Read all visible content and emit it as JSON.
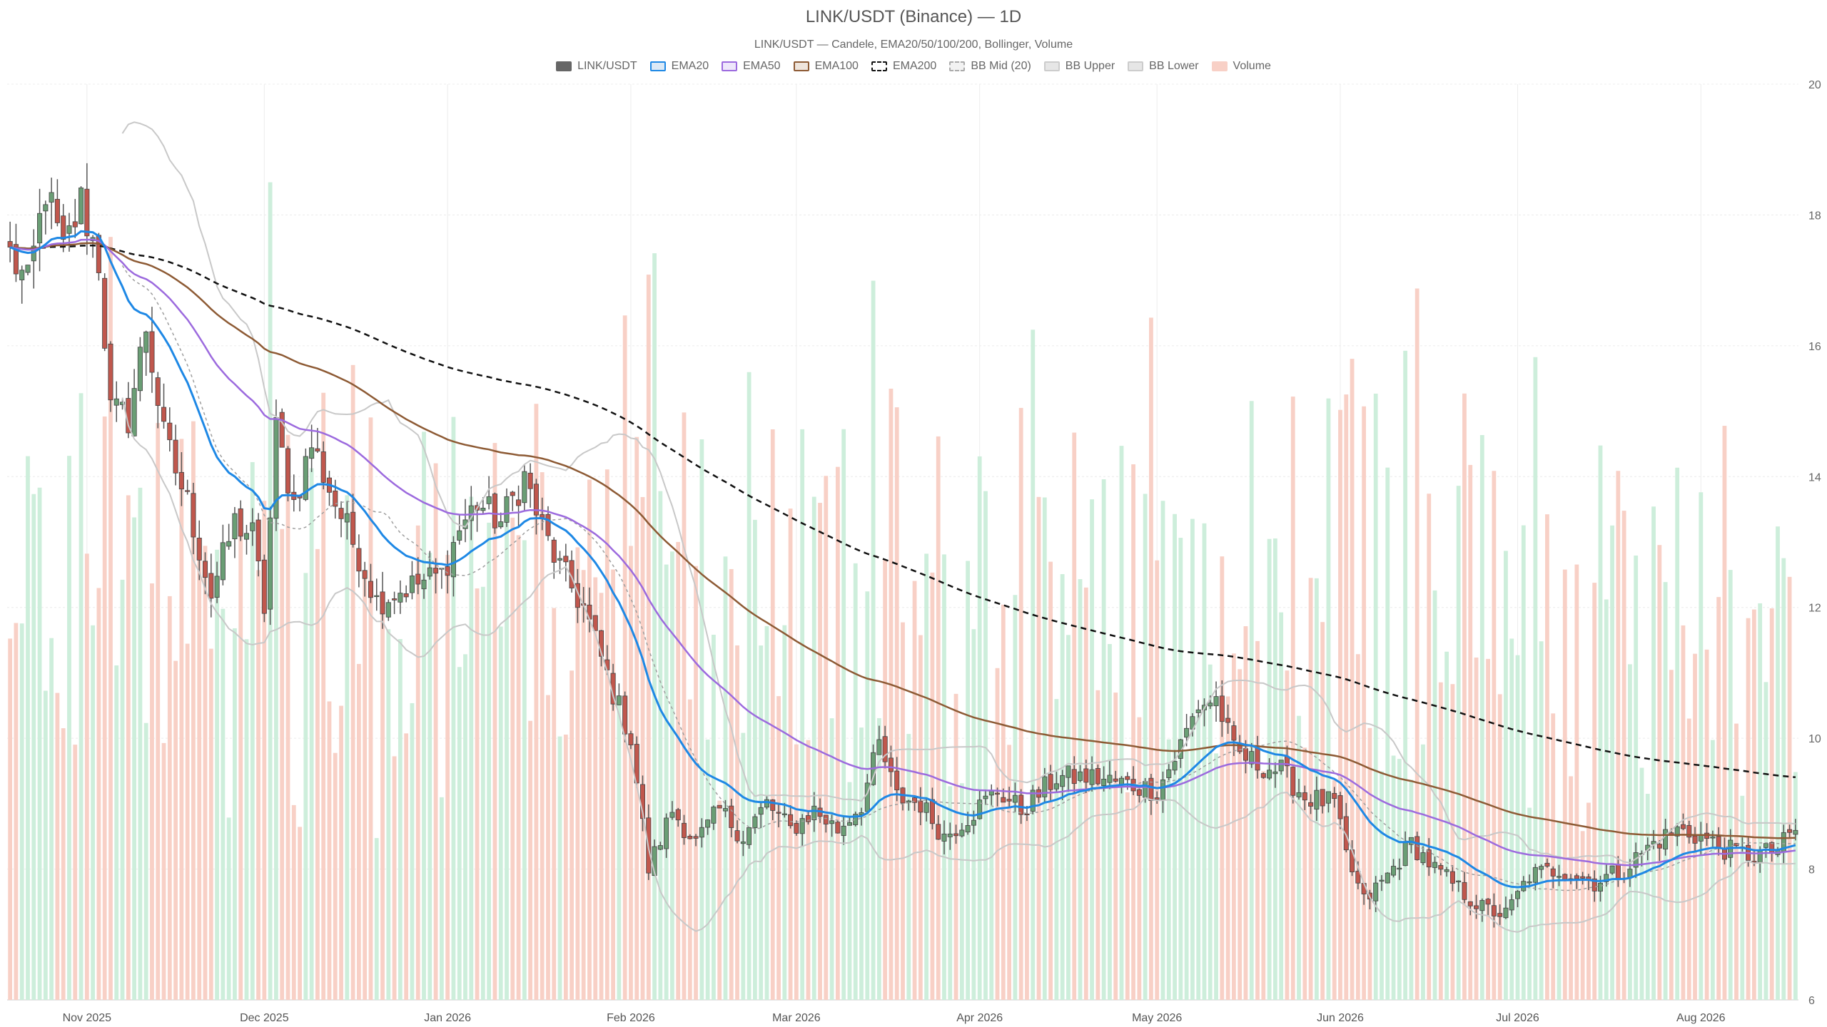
{
  "chart_data": {
    "type": "candlestick",
    "title": "LINK/USDT (Binance) — 1D",
    "subtitle": "LINK/USDT — Candele, EMA20/50/100/200, Bollinger, Volume",
    "legend": [
      {
        "name": "LINK/USDT",
        "swatch_fill": "#666666",
        "swatch_stroke": "#666666",
        "dashed": false
      },
      {
        "name": "EMA20",
        "swatch_fill": "#dbe9f6",
        "swatch_stroke": "#1e88e5",
        "dashed": false
      },
      {
        "name": "EMA50",
        "swatch_fill": "#eee7fb",
        "swatch_stroke": "#9c6ade",
        "dashed": false
      },
      {
        "name": "EMA100",
        "swatch_fill": "#efe5dc",
        "swatch_stroke": "#8d5a34",
        "dashed": false
      },
      {
        "name": "EMA200",
        "swatch_fill": "#ffffff",
        "swatch_stroke": "#111111",
        "dashed": true
      },
      {
        "name": "BB Mid (20)",
        "swatch_fill": "#f2f2f2",
        "swatch_stroke": "#aaaaaa",
        "dashed": true
      },
      {
        "name": "BB Upper",
        "swatch_fill": "#e6e6e6",
        "swatch_stroke": "#cccccc",
        "dashed": false
      },
      {
        "name": "BB Lower",
        "swatch_fill": "#e6e6e6",
        "swatch_stroke": "#cccccc",
        "dashed": false
      },
      {
        "name": "Volume",
        "swatch_fill": "#f8d0c6",
        "swatch_stroke": "#f8d0c6",
        "dashed": false
      }
    ],
    "x_axis": {
      "start_date": "2025-10-19",
      "end_date": "2026-08-17",
      "tick_labels": [
        {
          "label": "Nov 2025",
          "date": "2025-11-01"
        },
        {
          "label": "Dec 2025",
          "date": "2025-12-01"
        },
        {
          "label": "Jan 2026",
          "date": "2026-01-01"
        },
        {
          "label": "Feb 2026",
          "date": "2026-02-01"
        },
        {
          "label": "Mar 2026",
          "date": "2026-03-01"
        },
        {
          "label": "Apr 2026",
          "date": "2026-04-01"
        },
        {
          "label": "May 2026",
          "date": "2026-05-01"
        },
        {
          "label": "Jun 2026",
          "date": "2026-06-01"
        },
        {
          "label": "Jul 2026",
          "date": "2026-07-01"
        },
        {
          "label": "Aug 2026",
          "date": "2026-08-01"
        }
      ]
    },
    "y_axis": {
      "range": [
        6,
        20
      ],
      "ticks": [
        6,
        8,
        10,
        12,
        14,
        16,
        18,
        20
      ],
      "position": "right"
    },
    "grid": true,
    "colors": {
      "up_body": "#6a9e75",
      "down_body": "#c0574d",
      "wick": "#555555",
      "ema20": "#1e88e5",
      "ema50": "#9c6ade",
      "ema100": "#8d5a34",
      "ema200": "#111111",
      "bb_mid": "#9e9e9e",
      "bb_band": "#c8c8c8",
      "vol_up": "#cdeedb",
      "vol_down": "#f8d0c6"
    },
    "price_anchors": [
      [
        "2025-10-19",
        17.4
      ],
      [
        "2025-10-22",
        16.9
      ],
      [
        "2025-10-25",
        18.4
      ],
      [
        "2025-10-28",
        17.4
      ],
      [
        "2025-10-31",
        18.2
      ],
      [
        "2025-11-03",
        17.3
      ],
      [
        "2025-11-05",
        15.0
      ],
      [
        "2025-11-08",
        14.9
      ],
      [
        "2025-11-11",
        16.3
      ],
      [
        "2025-11-14",
        14.6
      ],
      [
        "2025-11-18",
        13.6
      ],
      [
        "2025-11-22",
        12.2
      ],
      [
        "2025-11-26",
        13.3
      ],
      [
        "2025-11-29",
        13.1
      ],
      [
        "2025-12-01",
        12.0
      ],
      [
        "2025-12-03",
        14.7
      ],
      [
        "2025-12-06",
        13.6
      ],
      [
        "2025-12-09",
        14.5
      ],
      [
        "2025-12-13",
        13.6
      ],
      [
        "2025-12-17",
        12.8
      ],
      [
        "2025-12-20",
        12.1
      ],
      [
        "2025-12-25",
        12.3
      ],
      [
        "2025-12-31",
        12.5
      ],
      [
        "2026-01-03",
        13.2
      ],
      [
        "2026-01-06",
        13.6
      ],
      [
        "2026-01-10",
        13.3
      ],
      [
        "2026-01-14",
        14.0
      ],
      [
        "2026-01-17",
        13.2
      ],
      [
        "2026-01-20",
        12.6
      ],
      [
        "2026-01-24",
        12.0
      ],
      [
        "2026-01-29",
        10.7
      ],
      [
        "2026-02-01",
        10.0
      ],
      [
        "2026-02-04",
        8.0
      ],
      [
        "2026-02-08",
        8.9
      ],
      [
        "2026-02-12",
        8.4
      ],
      [
        "2026-02-16",
        8.9
      ],
      [
        "2026-02-20",
        8.5
      ],
      [
        "2026-02-24",
        9.0
      ],
      [
        "2026-02-28",
        8.6
      ],
      [
        "2026-03-04",
        8.9
      ],
      [
        "2026-03-08",
        8.6
      ],
      [
        "2026-03-12",
        9.0
      ],
      [
        "2026-03-15",
        9.9
      ],
      [
        "2026-03-18",
        9.1
      ],
      [
        "2026-03-22",
        9.0
      ],
      [
        "2026-03-26",
        8.5
      ],
      [
        "2026-03-30",
        8.8
      ],
      [
        "2026-04-04",
        9.2
      ],
      [
        "2026-04-08",
        8.9
      ],
      [
        "2026-04-14",
        9.4
      ],
      [
        "2026-04-20",
        9.4
      ],
      [
        "2026-04-26",
        9.3
      ],
      [
        "2026-05-01",
        9.2
      ],
      [
        "2026-05-04",
        9.7
      ],
      [
        "2026-05-08",
        10.5
      ],
      [
        "2026-05-11",
        10.6
      ],
      [
        "2026-05-14",
        9.8
      ],
      [
        "2026-05-18",
        9.6
      ],
      [
        "2026-05-22",
        9.5
      ],
      [
        "2026-05-26",
        9.1
      ],
      [
        "2026-05-31",
        9.0
      ],
      [
        "2026-06-02",
        8.2
      ],
      [
        "2026-06-05",
        7.5
      ],
      [
        "2026-06-09",
        7.9
      ],
      [
        "2026-06-13",
        8.4
      ],
      [
        "2026-06-17",
        8.0
      ],
      [
        "2026-06-21",
        7.7
      ],
      [
        "2026-06-25",
        7.4
      ],
      [
        "2026-06-29",
        7.3
      ],
      [
        "2026-07-03",
        7.9
      ],
      [
        "2026-07-08",
        8.0
      ],
      [
        "2026-07-14",
        7.8
      ],
      [
        "2026-07-19",
        8.0
      ],
      [
        "2026-07-24",
        8.4
      ],
      [
        "2026-07-28",
        8.6
      ],
      [
        "2026-08-01",
        8.5
      ],
      [
        "2026-08-05",
        8.3
      ],
      [
        "2026-08-10",
        8.2
      ],
      [
        "2026-08-14",
        8.3
      ],
      [
        "2026-08-17",
        8.6
      ]
    ],
    "volume_scale": {
      "bottom_price": 6,
      "max_height_price": 18.5
    }
  }
}
